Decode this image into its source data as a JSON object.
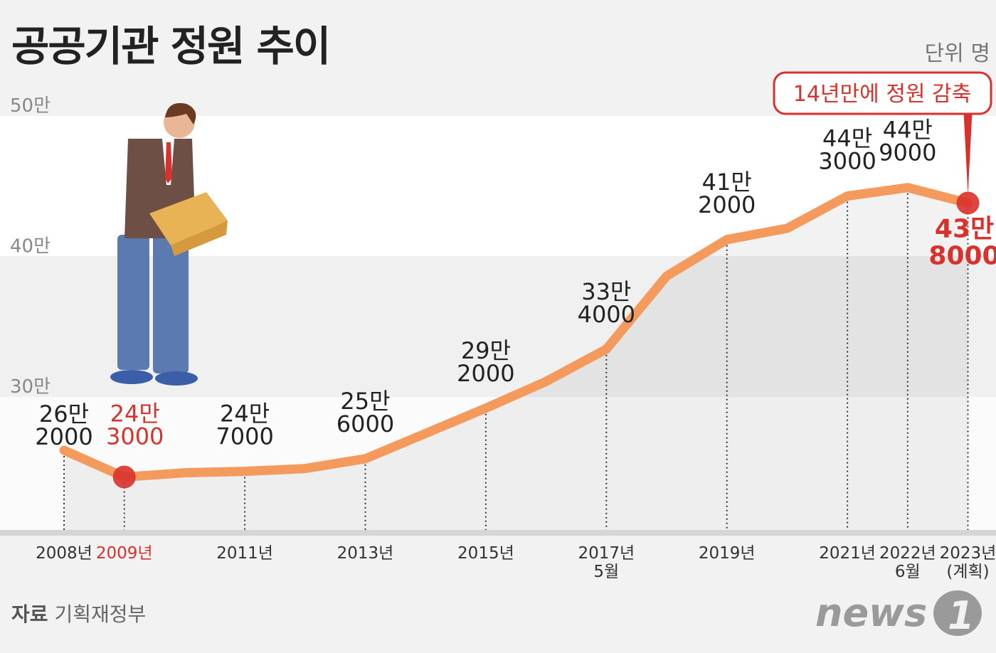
{
  "title": "공공기관 정원 추이",
  "unit_label": "단위 명",
  "source_label": "자료",
  "source": "기획재정부",
  "logo_text": "news1",
  "callout": "14년만에 정원 감축",
  "colors": {
    "line": "#f39a5c",
    "highlight": "#d9312b",
    "text": "#222222",
    "muted": "#777777"
  },
  "chart_data": {
    "type": "line",
    "ylabel": "",
    "xlabel": "",
    "ylim": [
      200000,
      500000
    ],
    "yticks": [
      {
        "value": 300000,
        "label": "30만"
      },
      {
        "value": 400000,
        "label": "40만"
      },
      {
        "value": 500000,
        "label": "50만"
      }
    ],
    "grid": "horizontal bands",
    "points": [
      {
        "x": "2008년",
        "y": 262000,
        "label": [
          "26만",
          "2000"
        ],
        "tick": "2008년"
      },
      {
        "x": "2009년",
        "y": 243000,
        "label": [
          "24만",
          "3000"
        ],
        "tick": "2009년",
        "highlight": true
      },
      {
        "x": "2010",
        "y": 246000
      },
      {
        "x": "2011년",
        "y": 247000,
        "label": [
          "24만",
          "7000"
        ],
        "tick": "2011년"
      },
      {
        "x": "2012",
        "y": 249000
      },
      {
        "x": "2013년",
        "y": 256000,
        "label": [
          "25만",
          "6000"
        ],
        "tick": "2013년"
      },
      {
        "x": "2014",
        "y": 274000
      },
      {
        "x": "2015년",
        "y": 292000,
        "label": [
          "29만",
          "2000"
        ],
        "tick": "2015년"
      },
      {
        "x": "2016",
        "y": 311000
      },
      {
        "x": "2017년 5월",
        "y": 334000,
        "label": [
          "33만",
          "4000"
        ],
        "tick": "2017년",
        "tick2": "5월"
      },
      {
        "x": "2018",
        "y": 386000
      },
      {
        "x": "2019년",
        "y": 412000,
        "label": [
          "41만",
          "2000"
        ],
        "tick": "2019년"
      },
      {
        "x": "2020",
        "y": 420000
      },
      {
        "x": "2021년",
        "y": 443000,
        "label": [
          "44만",
          "3000"
        ],
        "tick": "2021년"
      },
      {
        "x": "2022년 6월",
        "y": 449000,
        "label": [
          "44만",
          "9000"
        ],
        "tick": "2022년",
        "tick2": "6월"
      },
      {
        "x": "2023년 (계획)",
        "y": 438000,
        "label": [
          "43만",
          "8000"
        ],
        "tick": "2023년",
        "tick2": "(계획)",
        "highlight": true
      }
    ]
  }
}
